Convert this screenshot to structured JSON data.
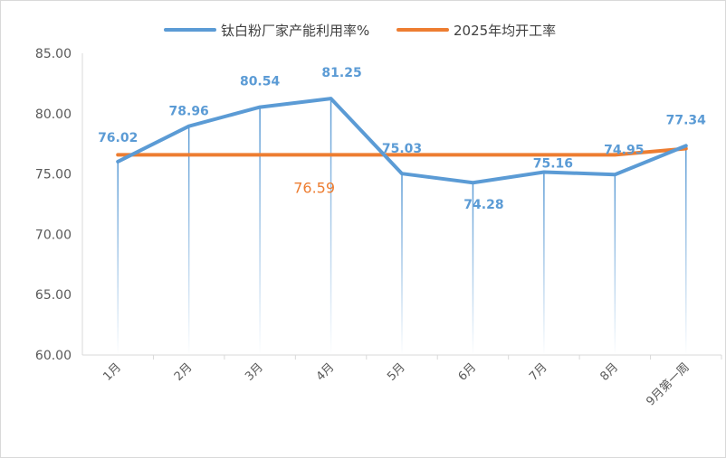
{
  "chart_data": {
    "type": "line",
    "categories": [
      "1月",
      "2月",
      "3月",
      "4月",
      "5月",
      "6月",
      "7月",
      "8月",
      "9月第一周"
    ],
    "series": [
      {
        "name": "钛白粉厂家产能利用率%",
        "color": "#5b9bd5",
        "values": [
          76.02,
          78.96,
          80.54,
          81.25,
          75.03,
          74.28,
          75.16,
          74.95,
          77.34
        ],
        "labels": [
          "76.02",
          "78.96",
          "80.54",
          "81.25",
          "75.03",
          "74.28",
          "75.16",
          "74.95",
          "77.34"
        ]
      },
      {
        "name": "2025年均开工率",
        "color": "#ed7d31",
        "values": [
          76.59,
          76.59,
          76.59,
          76.59,
          76.59,
          76.59,
          76.59,
          76.59,
          77.1
        ],
        "label": "76.59"
      }
    ],
    "y_ticks": [
      "60.00",
      "65.00",
      "70.00",
      "75.00",
      "80.00",
      "85.00"
    ],
    "ylim": [
      60,
      85
    ],
    "drop_lines": true,
    "grid": false,
    "legend_position": "top"
  }
}
